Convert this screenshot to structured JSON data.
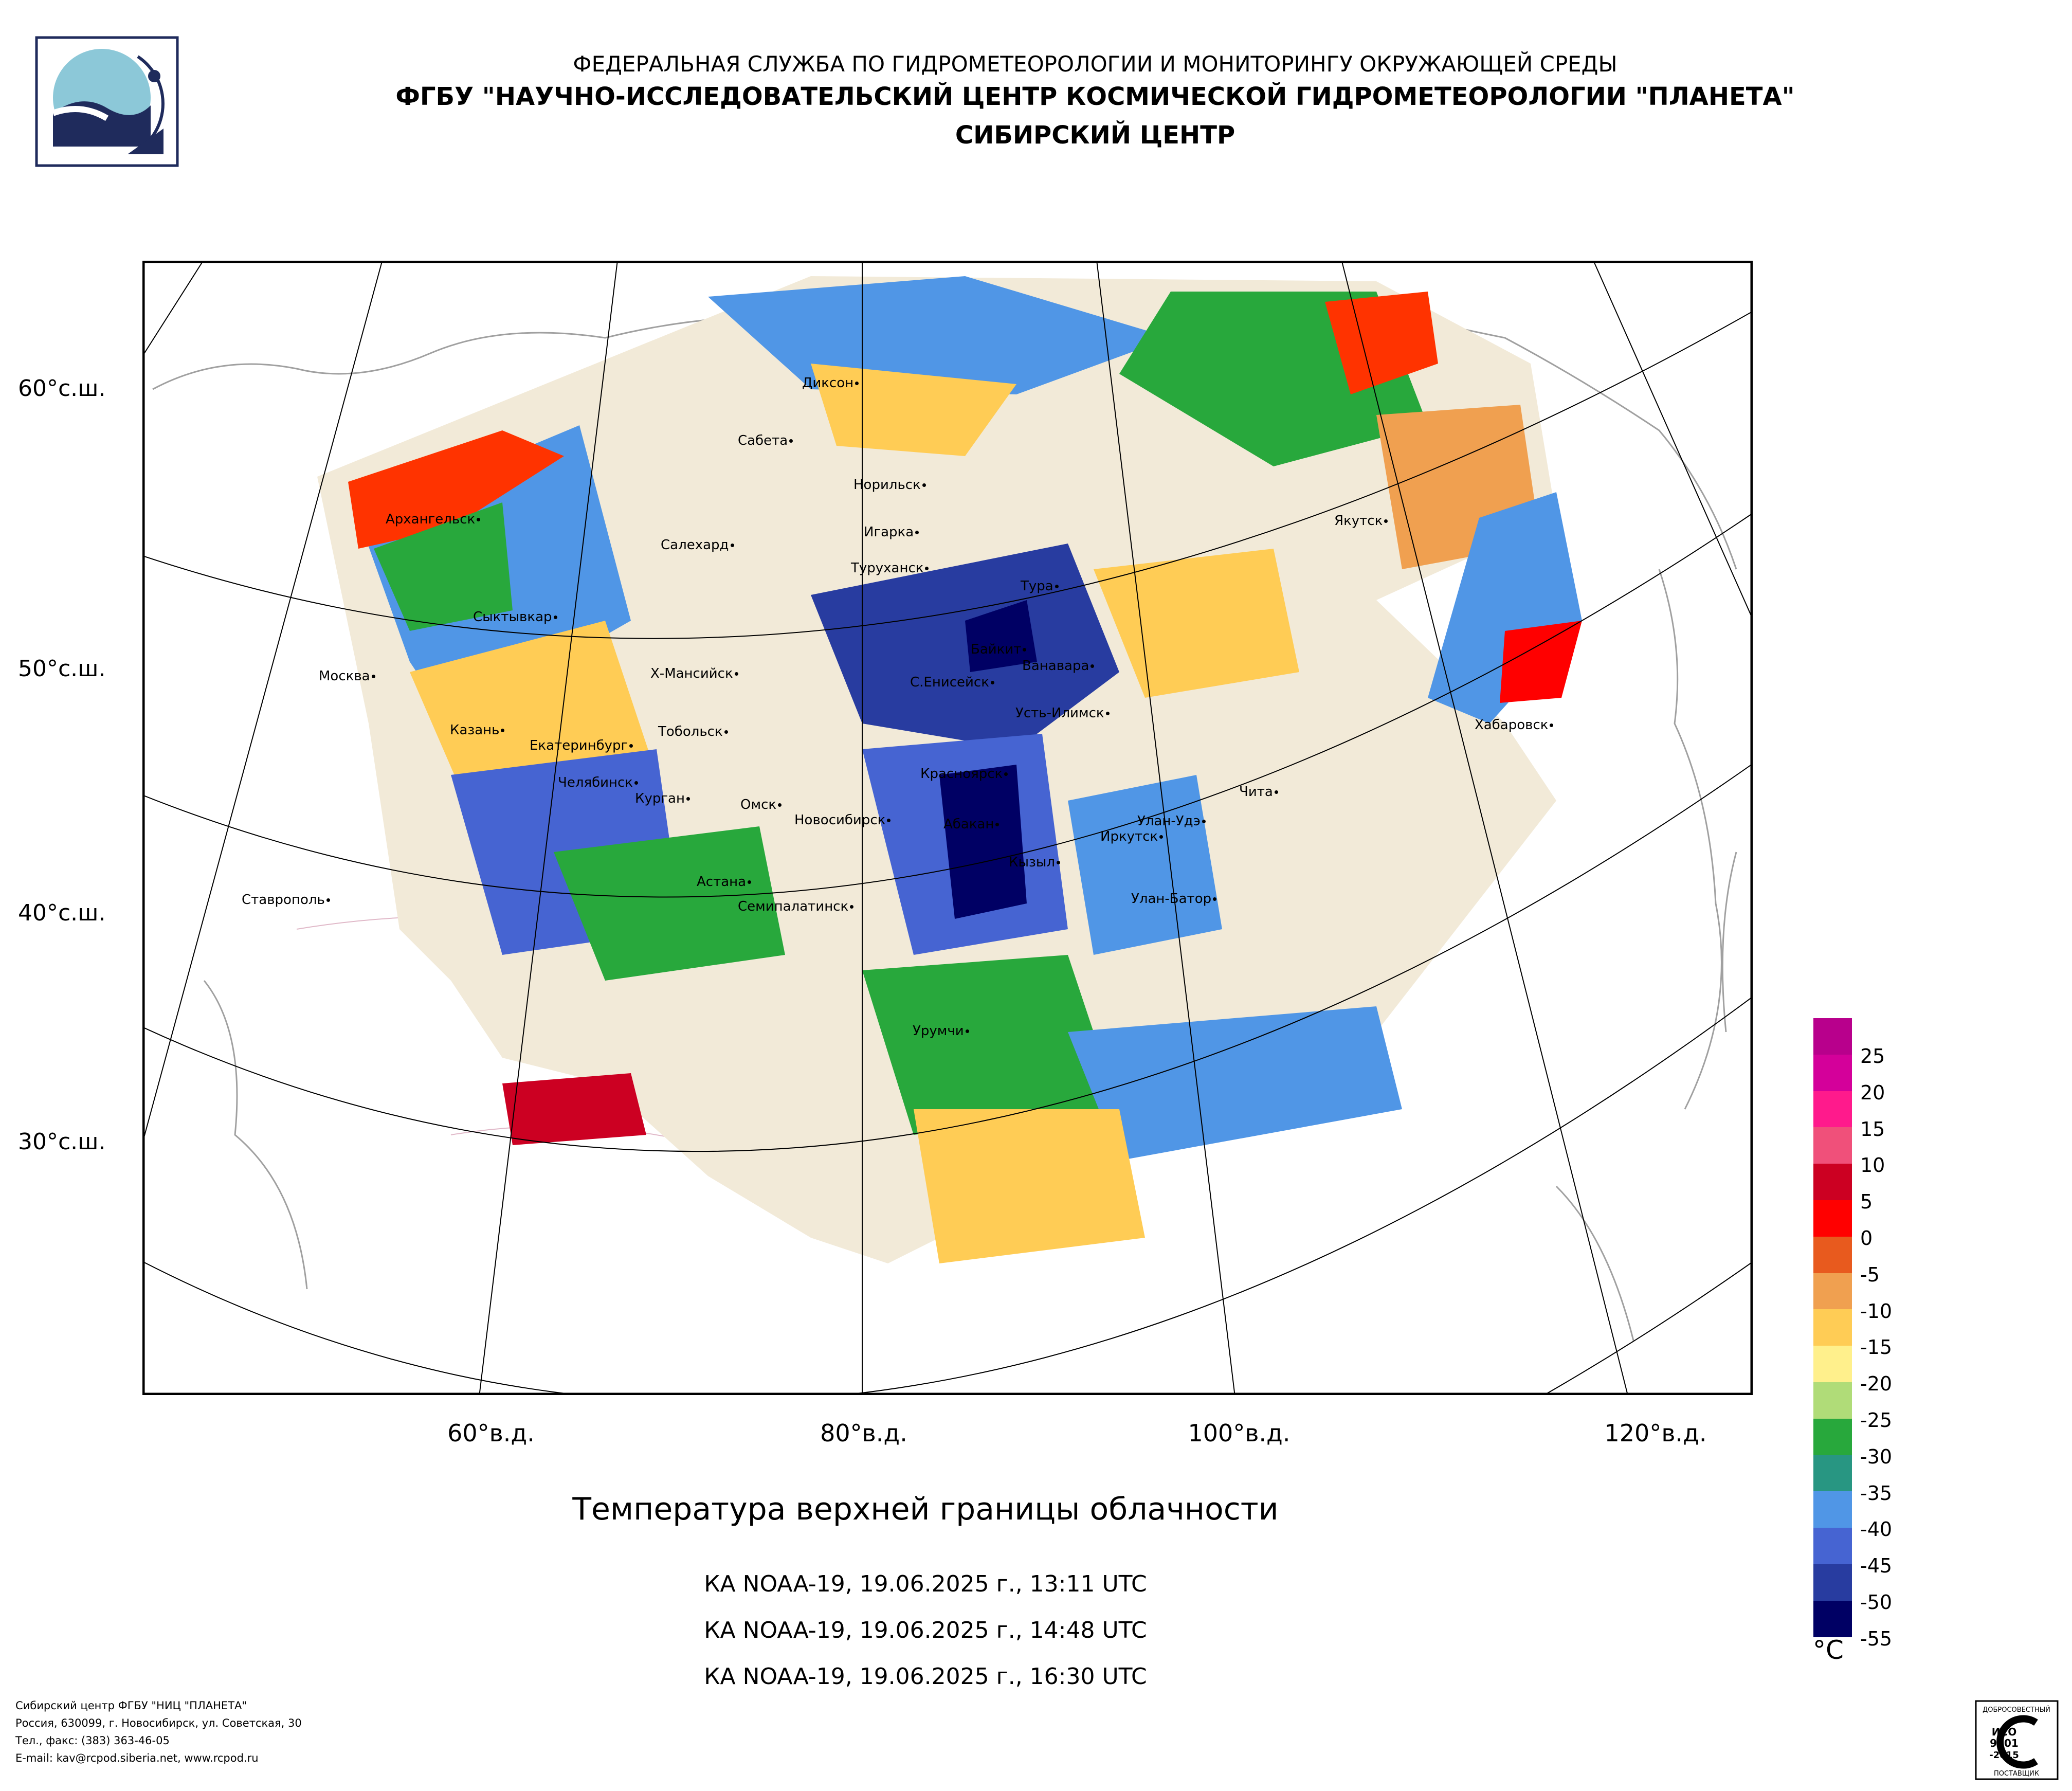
{
  "header": {
    "agency": "ФЕДЕРАЛЬНАЯ СЛУЖБА ПО ГИДРОМЕТЕОРОЛОГИИ И МОНИТОРИНГУ ОКРУЖАЮЩЕЙ СРЕДЫ",
    "organization": "ФГБУ \"НАУЧНО-ИССЛЕДОВАТЕЛЬСКИЙ ЦЕНТР КОСМИЧЕСКОЙ ГИДРОМЕТЕОРОЛОГИИ \"ПЛАНЕТА\"",
    "center": "СИБИРСКИЙ ЦЕНТР"
  },
  "map": {
    "lat_labels": [
      "60°с.ш.",
      "50°с.ш.",
      "40°с.ш.",
      "30°с.ш."
    ],
    "lon_labels": [
      "60°в.д.",
      "80°в.д.",
      "100°в.д.",
      "120°в.д."
    ],
    "cities": [
      "Диксон",
      "Сабета",
      "Норильск",
      "Архангельск",
      "Салехард",
      "Игарка",
      "Туруханск",
      "Тура",
      "Якутск",
      "Сыктывкар",
      "Байкит",
      "Ванавара",
      "Москва",
      "Х-Мансийск",
      "С.Енисейск",
      "Усть-Илимск",
      "Хабаровск",
      "Казань",
      "Тобольск",
      "Екатеринбург",
      "Красноярск",
      "Челябинск",
      "Курган",
      "Чита",
      "Омск",
      "Новосибирск",
      "Абакан",
      "Улан-Удэ",
      "Иркутск",
      "Кызыл",
      "Ставрополь",
      "Астана",
      "Семипалатинск",
      "Улан-Батор",
      "Урумчи"
    ]
  },
  "legend": {
    "colors": [
      "#b8008c",
      "#d4009a",
      "#ff1a8c",
      "#f0507a",
      "#cc0022",
      "#ff0000",
      "#e85a1e",
      "#f0a050",
      "#ffcc55",
      "#fff08c",
      "#b0dc78",
      "#28a83c",
      "#289682",
      "#5096e6",
      "#4664d2",
      "#283ca0",
      "#000064"
    ],
    "ticks": [
      "25",
      "20",
      "15",
      "10",
      "5",
      "0",
      "-5",
      "-10",
      "-15",
      "-20",
      "-25",
      "-30",
      "-35",
      "-40",
      "-45",
      "-50",
      "-55"
    ],
    "unit": "°C"
  },
  "title": "Температура верхней границы облачности",
  "passes": [
    "КА NOAA-19, 19.06.2025 г., 13:11 UTC",
    "КА NOAA-19, 19.06.2025 г., 14:48 UTC",
    "КА NOAA-19, 19.06.2025 г., 16:30 UTC"
  ],
  "footer": {
    "line1": "Сибирский центр ФГБУ \"НИЦ \"ПЛАНЕТА\"",
    "line2": "Россия, 630099, г. Новосибирск, ул. Советская, 30",
    "line3": "Тел., факс: (383) 363-46-05",
    "line4": "E-mail: kav@rcpod.siberia.net, www.rcpod.ru"
  },
  "iso_badge": {
    "top": "ДОБРОСОВЕСТНЫЙ",
    "iso": "ИСО",
    "num": "9001",
    "year": "-2015",
    "bottom": "ПОСТАВЩИК"
  }
}
